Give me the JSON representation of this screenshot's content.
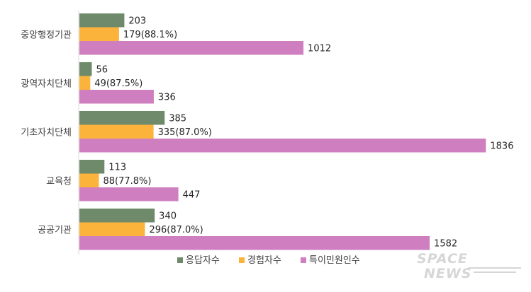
{
  "chart_data": {
    "type": "bar",
    "orientation": "horizontal",
    "categories": [
      "중앙행정기관",
      "광역자치단체",
      "기초자치단체",
      "교육청",
      "공공기관"
    ],
    "series": [
      {
        "name": "응답자수",
        "color": "#6e8a6a",
        "values": [
          203,
          56,
          385,
          113,
          340
        ],
        "labels": [
          "203",
          "56",
          "385",
          "113",
          "340"
        ]
      },
      {
        "name": "경험자수",
        "color": "#fbb33c",
        "values": [
          179,
          49,
          335,
          88,
          296
        ],
        "labels": [
          "179(88.1%)",
          "49(87.5%)",
          "335(87.0%)",
          "88(77.8%)",
          "296(87.0%)"
        ]
      },
      {
        "name": "특이민원인수",
        "color": "#cf7fc0",
        "values": [
          1012,
          336,
          1836,
          447,
          1582
        ],
        "labels": [
          "1012",
          "336",
          "1836",
          "447",
          "1582"
        ]
      }
    ],
    "xlim": [
      0,
      1870
    ],
    "grid": false,
    "legend_position": "bottom"
  },
  "watermark": {
    "line1": "SPACE",
    "line2": "NEWS"
  }
}
